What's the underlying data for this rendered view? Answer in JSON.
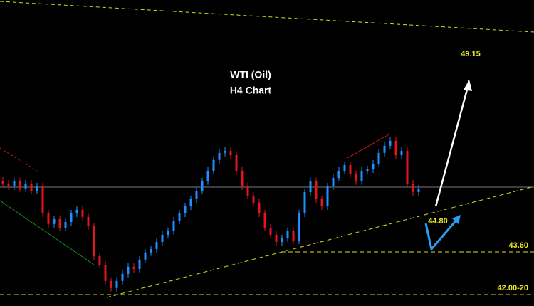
{
  "chart_data": {
    "type": "candlestick",
    "title": "WTI (Oil)",
    "subtitle": "H4 Chart",
    "ylim": [
      41.7,
      52.45
    ],
    "first_open": 46.1,
    "close": [
      46.0,
      45.9,
      46.08,
      45.83,
      46.0,
      45.75,
      45.9,
      44.95,
      44.58,
      44.75,
      44.45,
      44.65,
      44.95,
      45.08,
      44.83,
      44.5,
      43.45,
      43.15,
      42.58,
      42.33,
      42.58,
      42.83,
      43.08,
      43.0,
      43.33,
      43.58,
      43.7,
      43.95,
      44.2,
      44.33,
      44.7,
      44.95,
      45.2,
      45.45,
      45.75,
      46.08,
      46.45,
      46.83,
      47.08,
      47.15,
      47.0,
      46.45,
      45.9,
      45.58,
      45.33,
      44.95,
      44.45,
      44.2,
      43.95,
      44.08,
      44.33,
      44.0,
      44.95,
      45.7,
      46.08,
      45.45,
      45.2,
      45.9,
      46.2,
      46.45,
      46.65,
      46.33,
      46.08,
      46.45,
      46.5,
      46.7,
      47.08,
      47.33,
      47.5,
      47.0,
      47.15,
      46.0,
      45.7,
      45.83
    ],
    "up_color": "#1e90ff",
    "down_color": "#e3161b",
    "levels": [
      {
        "value": 43.6,
        "label": "43.60"
      },
      {
        "value": 42.1,
        "label": "42.00-20"
      }
    ],
    "annotations": [
      "49.15",
      "44.80"
    ]
  }
}
